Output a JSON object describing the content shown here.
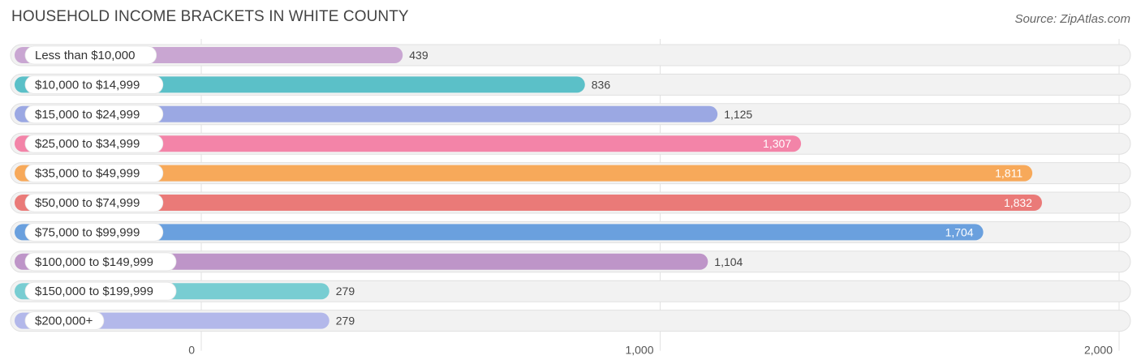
{
  "title": "HOUSEHOLD INCOME BRACKETS IN WHITE COUNTY",
  "source": "Source: ZipAtlas.com",
  "chart_data": {
    "type": "bar",
    "orientation": "horizontal",
    "categories": [
      "Less than $10,000",
      "$10,000 to $14,999",
      "$15,000 to $24,999",
      "$25,000 to $34,999",
      "$35,000 to $49,999",
      "$50,000 to $74,999",
      "$75,000 to $99,999",
      "$100,000 to $149,999",
      "$150,000 to $199,999",
      "$200,000+"
    ],
    "values": [
      439,
      836,
      1125,
      1307,
      1811,
      1832,
      1704,
      1104,
      279,
      279
    ],
    "value_labels": [
      "439",
      "836",
      "1,125",
      "1,307",
      "1,811",
      "1,832",
      "1,704",
      "1,104",
      "279",
      "279"
    ],
    "colors": [
      "#c9a6d2",
      "#5bc0c8",
      "#9ba8e3",
      "#f384a8",
      "#f7a95a",
      "#ea7a78",
      "#6aa0de",
      "#be95c8",
      "#78cdd2",
      "#b3b8ea"
    ],
    "xlim": [
      0,
      2000
    ],
    "xticks": [
      0,
      1000,
      2000
    ],
    "xtick_labels": [
      "0",
      "1,000",
      "2,000"
    ],
    "grid": true,
    "legend": "none"
  }
}
